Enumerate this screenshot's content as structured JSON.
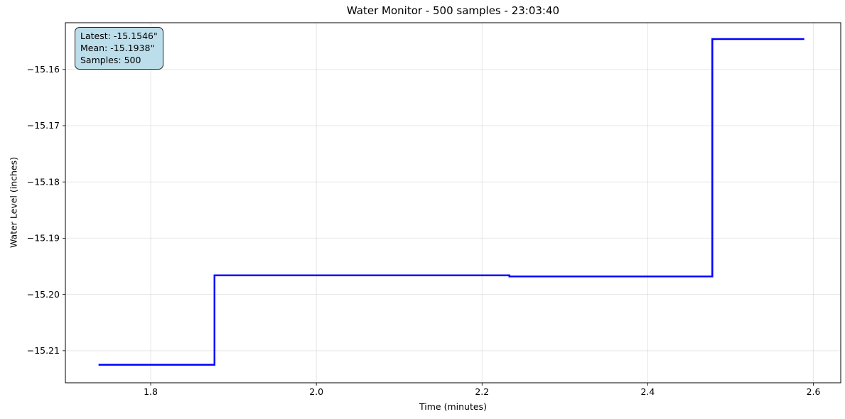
{
  "chart_data": {
    "type": "line",
    "subtype": "step",
    "title": "Water Monitor - 500 samples - 23:03:40",
    "xlabel": "Time (minutes)",
    "ylabel": "Water Level (inches)",
    "xlim": [
      1.697,
      2.633
    ],
    "ylim": [
      -15.2157,
      -15.1517
    ],
    "xticks": [
      1.8,
      2.0,
      2.2,
      2.4,
      2.6
    ],
    "yticks": [
      -15.16,
      -15.17,
      -15.18,
      -15.19,
      -15.2,
      -15.21
    ],
    "grid": true,
    "legend_position": "none",
    "line": {
      "color": "#0000ff",
      "width": 2.5
    },
    "grid_color": "#cccccc",
    "grid_opacity": 0.45,
    "spine_color": "#000000",
    "series": [
      {
        "name": "water-level",
        "points": [
          [
            1.737,
            -15.2125
          ],
          [
            1.877,
            -15.2125
          ],
          [
            1.877,
            -15.1966
          ],
          [
            2.233,
            -15.1966
          ],
          [
            2.233,
            -15.1968
          ],
          [
            2.478,
            -15.1968
          ],
          [
            2.478,
            -15.1546
          ],
          [
            2.589,
            -15.1546
          ]
        ]
      }
    ],
    "annotation": {
      "lines": {
        "latest": "Latest: -15.1546\"",
        "mean": "Mean: -15.1938\"",
        "samples": "Samples: 500"
      },
      "facecolor": "#bcdeea",
      "edgecolor": "#222222"
    }
  }
}
